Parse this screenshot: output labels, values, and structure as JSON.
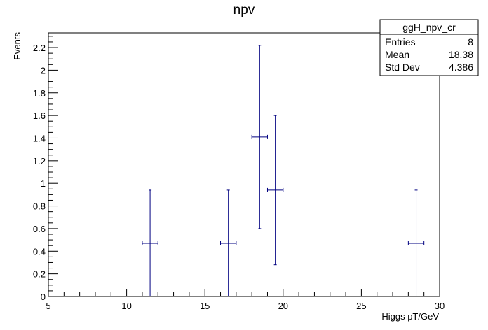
{
  "chart_data": {
    "type": "scatter",
    "title": "npv",
    "xlabel": "Higgs pT/GeV",
    "ylabel": "Events",
    "xlim": [
      5,
      30
    ],
    "ylim": [
      0,
      2.33
    ],
    "x_ticks": [
      "5",
      "10",
      "15",
      "20",
      "25",
      "30"
    ],
    "y_ticks": [
      "0",
      "0.2",
      "0.4",
      "0.6",
      "0.8",
      "1",
      "1.2",
      "1.4",
      "1.6",
      "1.8",
      "2",
      "2.2"
    ],
    "grid": false,
    "points": [
      {
        "x": 11.5,
        "y": 0.47,
        "xerr": 0.5,
        "ylow": 0.0,
        "yhigh": 0.94
      },
      {
        "x": 16.5,
        "y": 0.47,
        "xerr": 0.5,
        "ylow": 0.0,
        "yhigh": 0.94
      },
      {
        "x": 18.5,
        "y": 1.41,
        "xerr": 0.5,
        "ylow": 0.6,
        "yhigh": 2.22
      },
      {
        "x": 19.5,
        "y": 0.94,
        "xerr": 0.5,
        "ylow": 0.28,
        "yhigh": 1.6
      },
      {
        "x": 28.5,
        "y": 0.47,
        "xerr": 0.5,
        "ylow": 0.0,
        "yhigh": 0.94
      }
    ],
    "marker_color": "#000080",
    "stats_box": {
      "name": "ggH_npv_cr",
      "rows": [
        {
          "label": "Entries",
          "value": "8"
        },
        {
          "label": "Mean",
          "value": "18.38"
        },
        {
          "label": "Std Dev",
          "value": "4.386"
        }
      ],
      "placement": "top-right"
    }
  }
}
